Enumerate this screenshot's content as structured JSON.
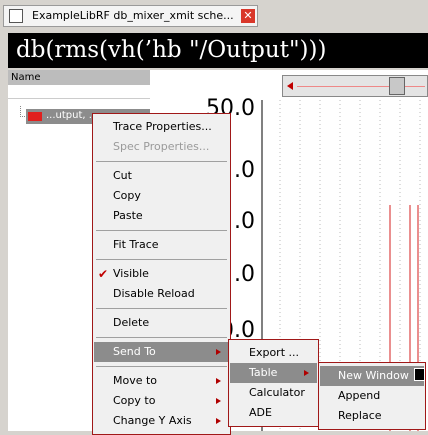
{
  "tab": {
    "title": "ExampleLibRF db_mixer_xmit sche..."
  },
  "expression": "db(rms(vh(’hb \"/Output\")))",
  "panel": {
    "header": "Name",
    "item": "...utput, ..."
  },
  "plot": {
    "y_labels": [
      "50.0",
      ".0",
      ".0",
      ".0",
      "0.0",
      ".0"
    ]
  },
  "menu": {
    "groups": [
      [
        {
          "label": "Trace Properties..."
        },
        {
          "label": "Spec Properties...",
          "disabled": true
        }
      ],
      [
        {
          "label": "Cut"
        },
        {
          "label": "Copy"
        },
        {
          "label": "Paste"
        }
      ],
      [
        {
          "label": "Fit Trace"
        }
      ],
      [
        {
          "label": "Visible",
          "checked": true
        },
        {
          "label": "Disable Reload"
        }
      ],
      [
        {
          "label": "Delete"
        }
      ],
      [
        {
          "label": "Send To",
          "submenu": true,
          "active": true
        }
      ],
      [
        {
          "label": "Move to",
          "submenu": true
        },
        {
          "label": "Copy to",
          "submenu": true
        },
        {
          "label": "Change Y Axis",
          "submenu": true
        }
      ]
    ]
  },
  "send_to_menu": {
    "groups": [
      [
        {
          "label": "Export ..."
        },
        {
          "label": "Table",
          "submenu": true,
          "active": true
        },
        {
          "label": "Calculator"
        },
        {
          "label": "ADE"
        }
      ]
    ]
  },
  "table_menu": {
    "groups": [
      [
        {
          "label": "New Window",
          "active": true
        },
        {
          "label": "Append"
        },
        {
          "label": "Replace"
        }
      ]
    ]
  }
}
